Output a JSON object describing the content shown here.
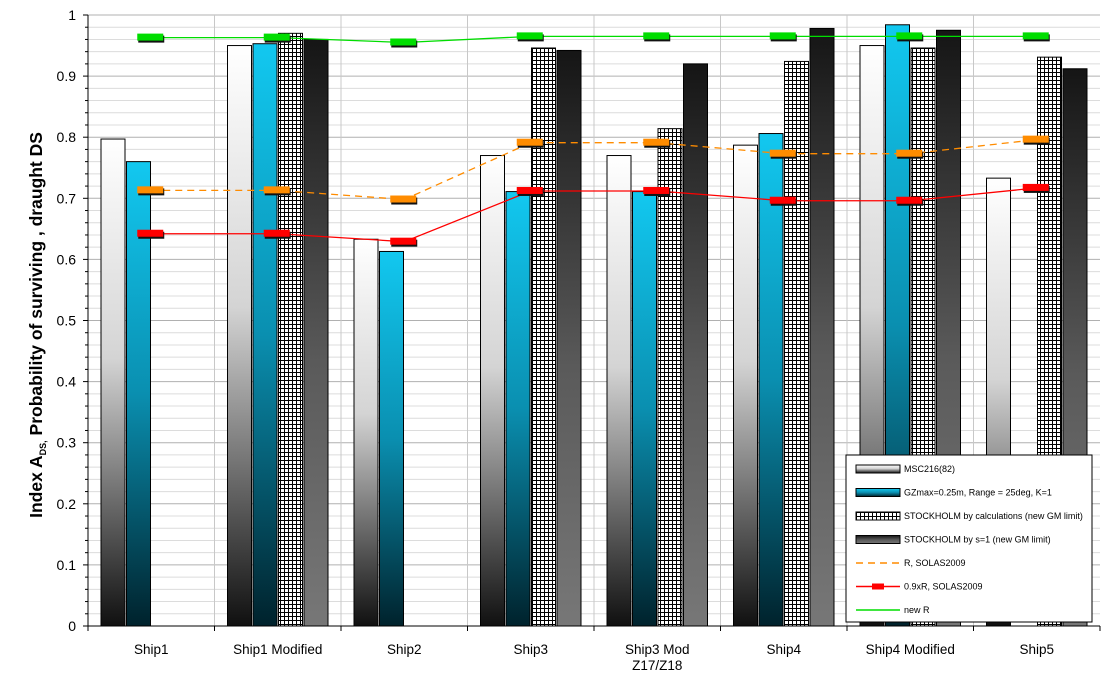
{
  "chart_data": {
    "type": "bar",
    "title": "",
    "xlabel": "",
    "ylabel": {
      "prefix": "Index A",
      "subscript": "DS,",
      "suffix": " Probability of surviving , draught DS"
    },
    "ylim": [
      0,
      1
    ],
    "y_ticks": [
      "0",
      "0.1",
      "0.2",
      "0.3",
      "0.4",
      "0.5",
      "0.6",
      "0.7",
      "0.8",
      "0.9",
      "1"
    ],
    "grid": true,
    "legend_position": "bottom-right",
    "categories": [
      [
        "Ship1"
      ],
      [
        "Ship1 Modified"
      ],
      [
        "Ship2"
      ],
      [
        "Ship3"
      ],
      [
        "Ship3 Mod",
        "Z17/Z18"
      ],
      [
        "Ship4"
      ],
      [
        "Ship4 Modified"
      ],
      [
        "Ship5"
      ]
    ],
    "series": [
      {
        "name": "MSC216(82)",
        "kind": "bar",
        "style": "white-gradient",
        "values": [
          0.797,
          0.95,
          0.633,
          0.77,
          0.77,
          0.787,
          0.95,
          0.733
        ]
      },
      {
        "name": "GZmax=0.25m, Range = 25deg, K=1",
        "kind": "bar",
        "style": "cyan-gradient",
        "values": [
          0.76,
          0.953,
          0.613,
          0.711,
          0.711,
          0.806,
          0.984,
          null
        ]
      },
      {
        "name": "STOCKHOLM by calculations (new GM limit)",
        "kind": "bar",
        "style": "grid-pattern",
        "values": [
          null,
          0.97,
          null,
          0.946,
          0.814,
          0.924,
          0.946,
          0.931
        ]
      },
      {
        "name": "STOCKHOLM by s=1 (new GM limit)",
        "kind": "bar",
        "style": "dark-gradient",
        "values": [
          null,
          0.96,
          null,
          0.942,
          0.92,
          0.978,
          0.975,
          0.912
        ]
      },
      {
        "name": "R, SOLAS2009",
        "kind": "line",
        "color": "#ff8c00",
        "dashed": true,
        "values": [
          0.713,
          0.713,
          0.698,
          0.791,
          0.791,
          0.773,
          0.773,
          0.796
        ]
      },
      {
        "name": "0.9xR, SOLAS2009",
        "kind": "line",
        "color": "#ff0000",
        "dashed": false,
        "values": [
          0.642,
          0.642,
          0.629,
          0.712,
          0.712,
          0.696,
          0.696,
          0.717
        ]
      },
      {
        "name": "new R",
        "kind": "line",
        "color": "#00dd00",
        "dashed": false,
        "values": [
          0.963,
          0.963,
          0.955,
          0.965,
          0.965,
          0.965,
          0.965,
          0.965
        ]
      }
    ]
  }
}
